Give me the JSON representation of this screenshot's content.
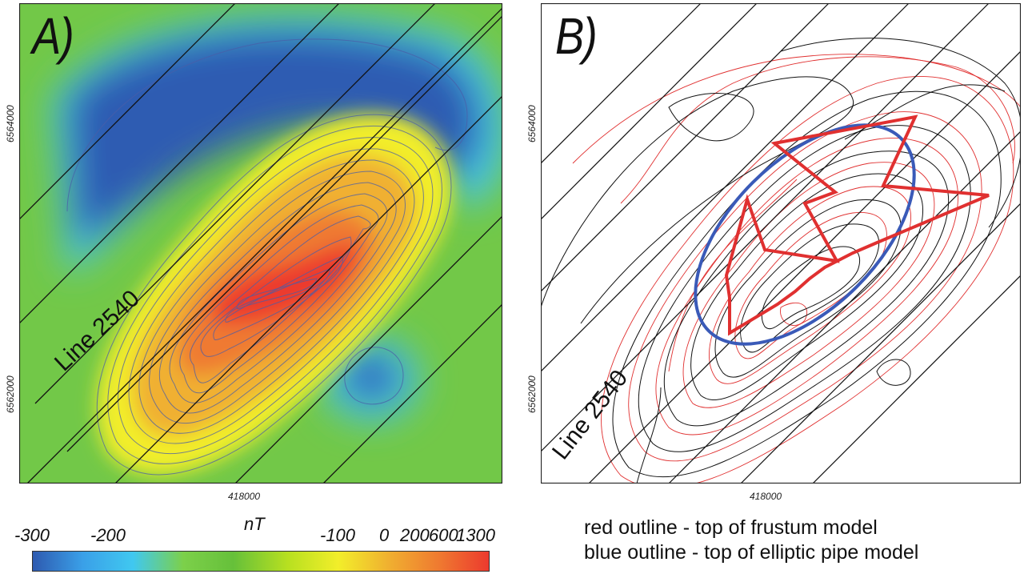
{
  "panels": {
    "a": {
      "label": "A)",
      "line_label": "Line 2540",
      "northing_top": "6564000",
      "northing_bottom": "6562000",
      "easting": "418000"
    },
    "b": {
      "label": "B)",
      "line_label": "Line 2540",
      "northing_top": "6564000",
      "northing_bottom": "6562000",
      "easting": "418000"
    }
  },
  "colorbar": {
    "unit": "nT",
    "ticks": [
      "-300",
      "-200",
      "-100",
      "0",
      "200",
      "600",
      "1300"
    ],
    "colors": [
      "#2e5ab0",
      "#3aa0e8",
      "#40c8f0",
      "#7cd04a",
      "#66c03a",
      "#b8e020",
      "#f2ee2a",
      "#f0b030",
      "#ef7a30",
      "#ec3a2e"
    ]
  },
  "legend": {
    "red": "red outline - top of frustum model",
    "blue": "blue outline - top of elliptic pipe model"
  },
  "colors": {
    "outline_red": "#e03030",
    "outline_blue": "#3a5ab8",
    "flight_line": "#111111"
  }
}
